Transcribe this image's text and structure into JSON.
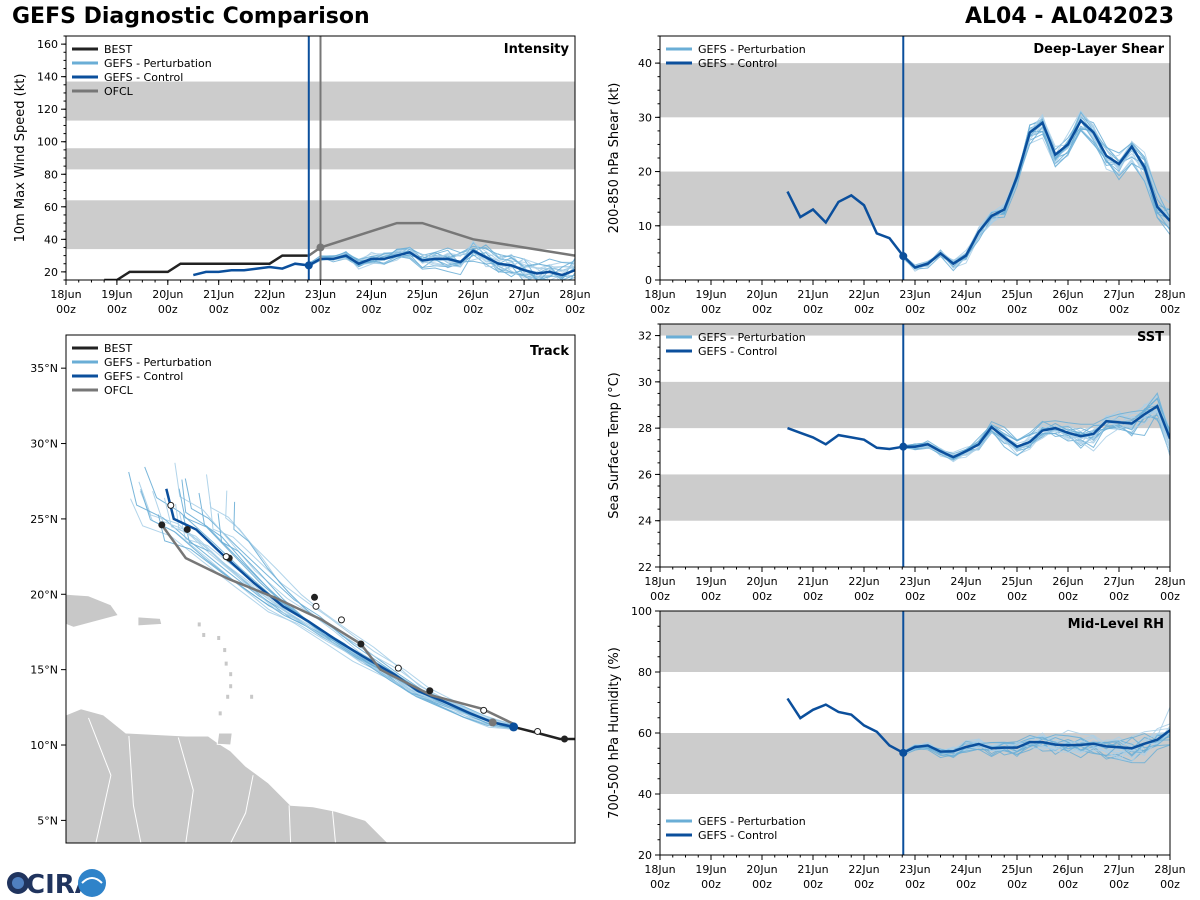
{
  "header": {
    "title": "GEFS Diagnostic Comparison",
    "storm_id": "AL04 - AL042023"
  },
  "logo": {
    "text": "CIRA"
  },
  "colors": {
    "best": "#222222",
    "perturbation": "#6aaed6",
    "perturbation_light": "#a9cfe8",
    "control": "#0b4f9c",
    "ofcl": "#777777",
    "band": "#cccccc",
    "land": "#c8c8c8"
  },
  "time_ticks": [
    "18Jun",
    "19Jun",
    "20Jun",
    "21Jun",
    "22Jun",
    "23Jun",
    "24Jun",
    "25Jun",
    "26Jun",
    "27Jun",
    "28Jun"
  ],
  "time_tick_sub": "00z",
  "init_time_day": 4.77,
  "chart_data": [
    {
      "id": "intensity",
      "type": "line",
      "title": "Intensity",
      "ylabel": "10m Max Wind Speed (kt)",
      "xlim": [
        0,
        10
      ],
      "ylim": [
        15,
        165
      ],
      "yticks": [
        20,
        40,
        60,
        80,
        100,
        120,
        140,
        160
      ],
      "bands": [
        [
          34,
          64
        ],
        [
          83,
          96
        ],
        [
          113,
          137
        ]
      ],
      "init_line": 4.77,
      "ofcl_line": 5.0,
      "legend": [
        "BEST",
        "GEFS - Perturbation",
        "GEFS - Control",
        "OFCL"
      ],
      "series": [
        {
          "name": "BEST",
          "x": [
            0.75,
            1.0,
            1.25,
            1.5,
            1.75,
            2.0,
            2.25,
            2.5,
            2.75,
            3.0,
            3.25,
            3.5,
            3.75,
            4.0,
            4.25,
            4.5,
            4.75
          ],
          "y": [
            15,
            15,
            20,
            20,
            20,
            20,
            25,
            25,
            25,
            25,
            25,
            25,
            25,
            25,
            30,
            30,
            30
          ]
        },
        {
          "name": "GEFS - Control",
          "x": [
            2.5,
            2.75,
            3.0,
            3.25,
            3.5,
            3.75,
            4.0,
            4.25,
            4.5,
            4.77,
            5.0,
            5.25,
            5.5,
            5.75,
            6.0,
            6.25,
            6.5,
            6.75,
            7.0,
            7.25,
            7.5,
            7.75,
            8.0,
            8.25,
            8.5,
            8.75,
            9.0,
            9.25,
            9.5,
            9.75,
            10.0
          ],
          "y": [
            18,
            20,
            20,
            21,
            21,
            22,
            23,
            22,
            25,
            24,
            28,
            28,
            30,
            25,
            28,
            28,
            30,
            32,
            27,
            28,
            28,
            26,
            33,
            29,
            25,
            24,
            21,
            19,
            20,
            18,
            21
          ]
        },
        {
          "name": "OFCL",
          "x": [
            4.77,
            5.0,
            6.0,
            6.5,
            7.0,
            8.0,
            9.0,
            10.0
          ],
          "y": [
            30,
            35,
            45,
            50,
            50,
            40,
            35,
            30
          ]
        }
      ]
    },
    {
      "id": "shear",
      "type": "line",
      "title": "Deep-Layer Shear",
      "ylabel": "200-850 hPa Shear (kt)",
      "xlim": [
        0,
        10
      ],
      "ylim": [
        0,
        45
      ],
      "yticks": [
        0,
        10,
        20,
        30,
        40
      ],
      "bands": [
        [
          10,
          20
        ],
        [
          30,
          40
        ]
      ],
      "init_line": 4.77,
      "legend": [
        "GEFS - Perturbation",
        "GEFS - Control"
      ],
      "series": [
        {
          "name": "GEFS - Control",
          "x": [
            2.5,
            2.75,
            3.0,
            3.25,
            3.5,
            3.75,
            4.0,
            4.25,
            4.5,
            4.77,
            5.0,
            5.25,
            5.5,
            5.75,
            6.0,
            6.25,
            6.5,
            6.75,
            7.0,
            7.25,
            7.5,
            7.75,
            8.0,
            8.25,
            8.5,
            8.75,
            9.0,
            9.25,
            9.5,
            9.75,
            10.0
          ],
          "y": [
            16.3,
            11.6,
            13.0,
            10.6,
            14.4,
            15.6,
            13.8,
            8.6,
            7.7,
            4.4,
            2.3,
            3.0,
            4.9,
            3.0,
            4.5,
            8.9,
            11.8,
            13.0,
            19.0,
            27.2,
            29.0,
            23.1,
            25.0,
            29.4,
            27.2,
            22.9,
            21.4,
            24.6,
            20.8,
            13.5,
            10.9
          ]
        }
      ]
    },
    {
      "id": "sst",
      "type": "line",
      "title": "SST",
      "ylabel": "Sea Surface Temp (°C)",
      "xlim": [
        0,
        10
      ],
      "ylim": [
        22,
        32.5
      ],
      "yticks": [
        22,
        24,
        26,
        28,
        30,
        32
      ],
      "bands": [
        [
          24,
          26
        ],
        [
          28,
          30
        ],
        [
          32,
          34
        ]
      ],
      "init_line": 4.77,
      "legend": [
        "GEFS - Perturbation",
        "GEFS - Control"
      ],
      "series": [
        {
          "name": "GEFS - Control",
          "x": [
            2.5,
            2.75,
            3.0,
            3.25,
            3.5,
            3.75,
            4.0,
            4.25,
            4.5,
            4.77,
            5.0,
            5.25,
            5.5,
            5.75,
            6.0,
            6.25,
            6.5,
            6.75,
            7.0,
            7.25,
            7.5,
            7.75,
            8.0,
            8.25,
            8.5,
            8.75,
            9.0,
            9.25,
            9.5,
            9.75,
            10.0
          ],
          "y": [
            28.0,
            27.8,
            27.6,
            27.3,
            27.7,
            27.6,
            27.5,
            27.15,
            27.1,
            27.2,
            27.2,
            27.3,
            27.0,
            26.75,
            27.0,
            27.3,
            28.05,
            27.6,
            27.2,
            27.4,
            27.9,
            28.0,
            27.8,
            27.65,
            27.75,
            28.3,
            28.25,
            28.2,
            28.6,
            28.95,
            27.55
          ]
        }
      ]
    },
    {
      "id": "rh",
      "type": "line",
      "title": "Mid-Level RH",
      "ylabel": "700-500 hPa Humidity (%)",
      "xlim": [
        0,
        10
      ],
      "ylim": [
        20,
        100
      ],
      "yticks": [
        20,
        40,
        60,
        80,
        100
      ],
      "bands": [
        [
          40,
          60
        ],
        [
          80,
          100
        ]
      ],
      "init_line": 4.77,
      "legend": [
        "GEFS - Perturbation",
        "GEFS - Control"
      ],
      "series": [
        {
          "name": "GEFS - Control",
          "x": [
            2.5,
            2.75,
            3.0,
            3.25,
            3.5,
            3.75,
            4.0,
            4.25,
            4.5,
            4.77,
            5.0,
            5.25,
            5.5,
            5.75,
            6.0,
            6.25,
            6.5,
            6.75,
            7.0,
            7.25,
            7.5,
            7.75,
            8.0,
            8.25,
            8.5,
            8.75,
            9.0,
            9.25,
            9.5,
            9.75,
            10.0
          ],
          "y": [
            71.3,
            64.9,
            67.6,
            69.3,
            66.9,
            66.0,
            62.5,
            60.4,
            55.9,
            53.5,
            55.4,
            55.9,
            53.9,
            54.0,
            55.4,
            56.4,
            55.0,
            55.2,
            55.2,
            57.0,
            57.0,
            56.2,
            56.0,
            56.1,
            56.5,
            55.6,
            55.3,
            55.0,
            56.5,
            57.8,
            60.9
          ]
        }
      ]
    },
    {
      "id": "track",
      "type": "line",
      "title": "Track",
      "xlabel": "",
      "ylabel": "",
      "xlim": [
        -72,
        -38
      ],
      "ylim": [
        3.5,
        37.2
      ],
      "yticks": [
        5,
        10,
        15,
        20,
        25,
        30,
        35
      ],
      "ytick_labels": [
        "5°N",
        "10°N",
        "15°N",
        "20°N",
        "25°N",
        "30°N",
        "35°N"
      ],
      "legend": [
        "BEST",
        "GEFS - Perturbation",
        "GEFS - Control",
        "OFCL"
      ],
      "series": [
        {
          "name": "BEST",
          "lon": [
            -38.0,
            -39.0,
            -40.5,
            -42.1
          ],
          "lat": [
            10.4,
            10.4,
            10.8,
            11.2
          ]
        },
        {
          "name": "GEFS - Control",
          "lon": [
            -42.1,
            -43.5,
            -45.0,
            -46.8,
            -48.5,
            -50.1,
            -52.2,
            -54.0,
            -55.8,
            -57.5,
            -59.5,
            -61.4,
            -63.3,
            -64.8,
            -65.3
          ],
          "lat": [
            11.2,
            11.5,
            12.1,
            12.9,
            13.6,
            14.7,
            15.9,
            17.0,
            18.2,
            19.2,
            20.8,
            22.5,
            24.3,
            25.0,
            27.0
          ]
        },
        {
          "name": "OFCL",
          "lon": [
            -42.1,
            -44.2,
            -47.6,
            -51.0,
            -52.3,
            -54.9,
            -58.1,
            -61.1,
            -64.0,
            -65.6
          ],
          "lat": [
            11.4,
            12.4,
            13.3,
            15.0,
            16.7,
            18.3,
            19.8,
            21.0,
            22.4,
            24.6
          ]
        }
      ],
      "points": {
        "ofcl_dots": {
          "lon": [
            -38.7,
            -47.7,
            -52.3,
            -55.4,
            -61.1,
            -63.9,
            -65.6
          ],
          "lat": [
            10.4,
            13.6,
            16.7,
            19.8,
            22.4,
            24.3,
            24.6
          ]
        },
        "control_dots": {
          "lon": [
            -40.5,
            -44.1,
            -49.8,
            -53.6,
            -58.2,
            -62.5,
            -65.0
          ],
          "lat": [
            10.9,
            12.3,
            15.1,
            17.9,
            20.8,
            24.3,
            26.0
          ]
        },
        "white_dots": {
          "lon": [
            -40.5,
            -44.1,
            -49.8,
            -53.6,
            -55.3,
            -61.3,
            -65.0
          ],
          "lat": [
            10.9,
            12.3,
            15.1,
            18.3,
            19.2,
            22.5,
            25.9
          ]
        },
        "gray_dot": {
          "lon": [
            -43.5
          ],
          "lat": [
            11.5
          ]
        }
      }
    }
  ]
}
